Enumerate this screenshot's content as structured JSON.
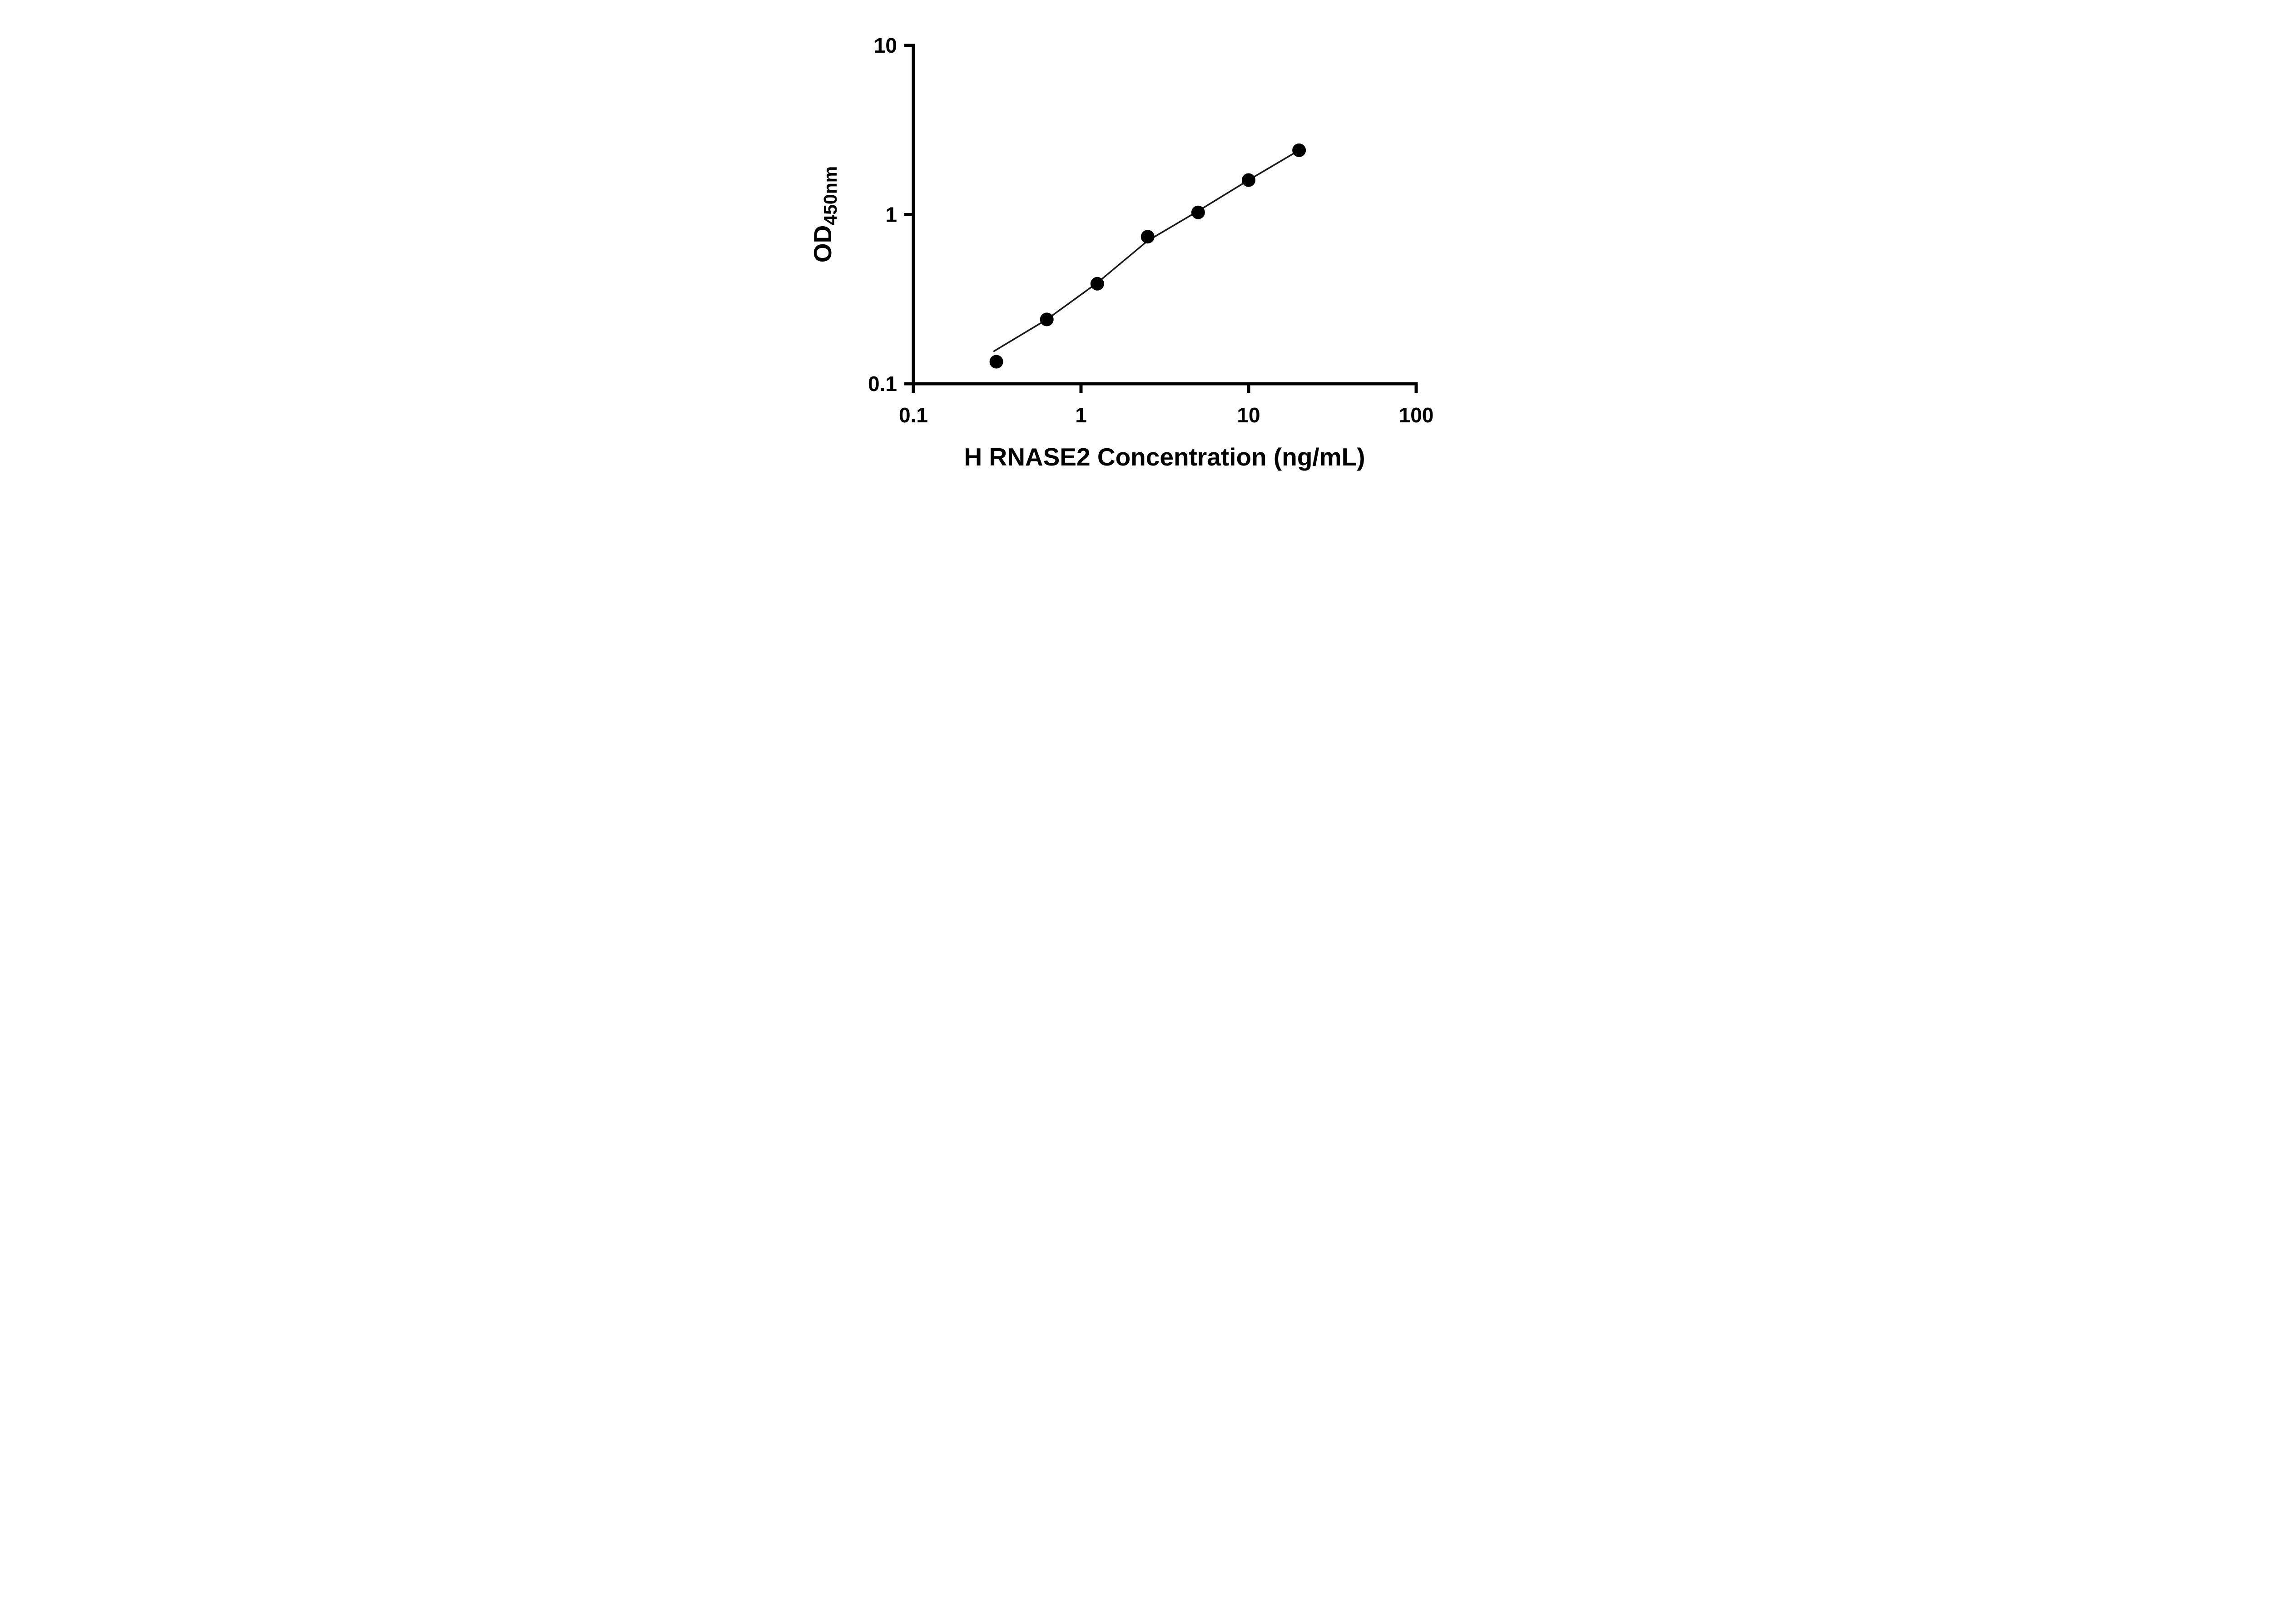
{
  "figure": {
    "background_color": "#ffffff"
  },
  "chart_data": {
    "type": "scatter",
    "title": "",
    "xlabel": "H RNASE2 Concentration (ng/mL)",
    "ylabel": "OD",
    "ylabel_subscript": "450nm",
    "xscale": "log",
    "yscale": "log",
    "xlim": [
      0.1,
      100
    ],
    "ylim": [
      0.1,
      10
    ],
    "x_tick_values": [
      0.1,
      1,
      10,
      100
    ],
    "x_tick_labels": [
      "0.1",
      "1",
      "10",
      "100"
    ],
    "y_tick_values": [
      0.1,
      1,
      10
    ],
    "y_tick_labels": [
      "0.1",
      "1",
      "10"
    ],
    "grid": false,
    "legend": false,
    "axis_color": "#000000",
    "marker_color": "#000000",
    "line_color": "#1a1a1a",
    "points": [
      {
        "x": 0.3125,
        "y": 0.135
      },
      {
        "x": 0.625,
        "y": 0.24
      },
      {
        "x": 1.25,
        "y": 0.39
      },
      {
        "x": 2.5,
        "y": 0.74
      },
      {
        "x": 5,
        "y": 1.03
      },
      {
        "x": 10,
        "y": 1.6
      },
      {
        "x": 20,
        "y": 2.4
      }
    ],
    "fit_curve": [
      {
        "x": 0.3,
        "y": 0.155
      },
      {
        "x": 0.625,
        "y": 0.24
      },
      {
        "x": 1.25,
        "y": 0.395
      },
      {
        "x": 2.5,
        "y": 0.7
      },
      {
        "x": 5,
        "y": 1.05
      },
      {
        "x": 10,
        "y": 1.6
      },
      {
        "x": 20,
        "y": 2.4
      }
    ]
  }
}
